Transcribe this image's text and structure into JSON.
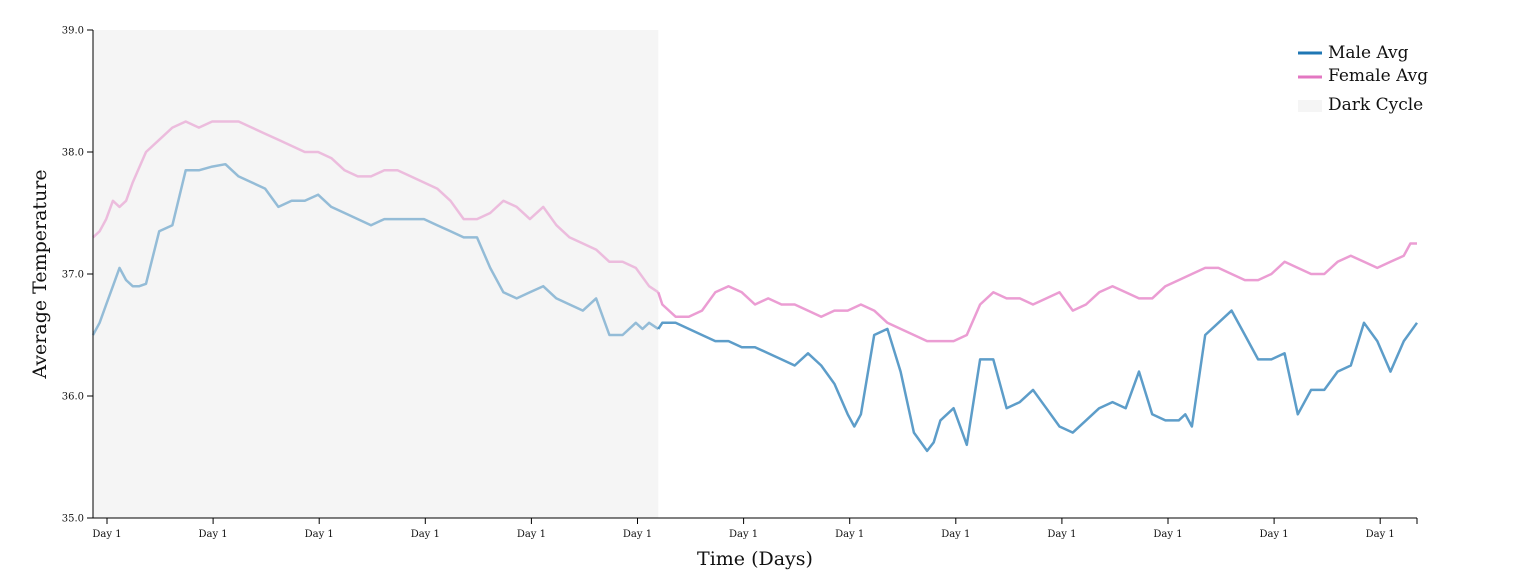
{
  "chart_data": {
    "type": "line",
    "title": "",
    "xlabel": "Time (Days)",
    "ylabel": "Average Temperature",
    "ylim": [
      35.0,
      39.0
    ],
    "y_ticks": [
      "35.0",
      "36.0",
      "37.0",
      "38.0",
      "39.0"
    ],
    "x_ticks": [
      "Day 1",
      "Day 1",
      "Day 1",
      "Day 1",
      "Day 1",
      "Day 1",
      "Day 1",
      "Day 1",
      "Day 1",
      "Day 1",
      "Day 1",
      "Day 1",
      "Day 1"
    ],
    "x_range": [
      0,
      100
    ],
    "dark_cycle": {
      "label": "Dark Cycle",
      "x_range": [
        0,
        42.7
      ],
      "color": "#f5f5f5"
    },
    "legend": {
      "position": "top-right",
      "items": [
        "Male Avg",
        "Female Avg",
        "Dark Cycle"
      ]
    },
    "series": [
      {
        "name": "Male Avg",
        "color": "#1f77b4",
        "x": [
          0,
          0.5,
          1,
          1.5,
          2,
          2.5,
          3,
          3.5,
          4,
          5,
          6,
          7,
          8,
          9,
          10,
          11,
          12,
          13,
          14,
          15,
          16,
          17,
          18,
          19,
          20,
          21,
          22,
          23,
          24,
          25,
          26,
          27,
          28,
          29,
          30,
          31,
          32,
          33,
          34,
          35,
          36,
          37,
          38,
          39,
          40,
          41,
          41.5,
          42,
          42.7,
          43,
          44,
          45,
          46,
          47,
          48,
          49,
          50,
          51,
          52,
          53,
          54,
          55,
          56,
          57,
          57.5,
          58,
          59,
          60,
          61,
          62,
          63,
          63.5,
          64,
          65,
          66,
          67,
          68,
          69,
          70,
          71,
          72,
          73,
          74,
          75,
          76,
          77,
          78,
          79,
          80,
          81,
          82,
          82.5,
          83,
          84,
          85,
          86,
          87,
          88,
          89,
          90,
          91,
          92,
          93,
          94,
          95,
          96,
          97,
          98,
          99,
          100
        ],
        "y": [
          36.5,
          36.6,
          36.75,
          36.9,
          37.05,
          36.95,
          36.9,
          36.9,
          36.92,
          37.35,
          37.4,
          37.85,
          37.85,
          37.88,
          37.9,
          37.8,
          37.75,
          37.7,
          37.55,
          37.6,
          37.6,
          37.65,
          37.55,
          37.5,
          37.45,
          37.4,
          37.45,
          37.45,
          37.45,
          37.45,
          37.4,
          37.35,
          37.3,
          37.3,
          37.05,
          36.85,
          36.8,
          36.85,
          36.9,
          36.8,
          36.75,
          36.7,
          36.8,
          36.5,
          36.5,
          36.6,
          36.55,
          36.6,
          36.55,
          36.6,
          36.6,
          36.55,
          36.5,
          36.45,
          36.45,
          36.4,
          36.4,
          36.35,
          36.3,
          36.25,
          36.35,
          36.25,
          36.1,
          35.85,
          35.75,
          35.85,
          36.5,
          36.55,
          36.2,
          35.7,
          35.55,
          35.62,
          35.8,
          35.9,
          35.6,
          36.3,
          36.3,
          35.9,
          35.95,
          36.05,
          35.9,
          35.75,
          35.7,
          35.8,
          35.9,
          35.95,
          35.9,
          36.2,
          35.85,
          35.8,
          35.8,
          35.85,
          35.75,
          36.5,
          36.6,
          36.7,
          36.5,
          36.3,
          36.3,
          36.35,
          35.85,
          36.05,
          36.05,
          36.2,
          36.25,
          36.6,
          36.45,
          36.2,
          36.45,
          36.6
        ]
      },
      {
        "name": "Female Avg",
        "color": "#e377c2",
        "x": [
          0,
          0.5,
          1,
          1.5,
          2,
          2.5,
          3,
          4,
          5,
          6,
          7,
          8,
          9,
          10,
          11,
          12,
          13,
          14,
          15,
          16,
          17,
          18,
          19,
          20,
          21,
          22,
          23,
          24,
          25,
          26,
          27,
          28,
          29,
          30,
          31,
          32,
          33,
          34,
          35,
          36,
          37,
          38,
          39,
          40,
          41,
          42,
          42.7,
          43,
          44,
          45,
          46,
          47,
          48,
          49,
          50,
          51,
          52,
          53,
          54,
          55,
          56,
          57,
          58,
          59,
          60,
          61,
          62,
          63,
          64,
          65,
          66,
          67,
          68,
          69,
          70,
          71,
          72,
          73,
          74,
          75,
          76,
          77,
          78,
          79,
          80,
          81,
          82,
          83,
          84,
          85,
          86,
          87,
          88,
          89,
          90,
          91,
          92,
          93,
          94,
          95,
          96,
          97,
          98,
          99,
          99.5,
          100
        ],
        "y": [
          37.3,
          37.35,
          37.45,
          37.6,
          37.55,
          37.6,
          37.75,
          38.0,
          38.1,
          38.2,
          38.25,
          38.2,
          38.25,
          38.25,
          38.25,
          38.2,
          38.15,
          38.1,
          38.05,
          38.0,
          38.0,
          37.95,
          37.85,
          37.8,
          37.8,
          37.85,
          37.85,
          37.8,
          37.75,
          37.7,
          37.6,
          37.45,
          37.45,
          37.5,
          37.6,
          37.55,
          37.45,
          37.55,
          37.4,
          37.3,
          37.25,
          37.2,
          37.1,
          37.1,
          37.05,
          36.9,
          36.85,
          36.75,
          36.65,
          36.65,
          36.7,
          36.85,
          36.9,
          36.85,
          36.75,
          36.8,
          36.75,
          36.75,
          36.7,
          36.65,
          36.7,
          36.7,
          36.75,
          36.7,
          36.6,
          36.55,
          36.5,
          36.45,
          36.45,
          36.45,
          36.5,
          36.75,
          36.85,
          36.8,
          36.8,
          36.75,
          36.8,
          36.85,
          36.7,
          36.75,
          36.85,
          36.9,
          36.85,
          36.8,
          36.8,
          36.9,
          36.95,
          37.0,
          37.05,
          37.05,
          37.0,
          36.95,
          36.95,
          37.0,
          37.1,
          37.05,
          37.0,
          37.0,
          37.1,
          37.15,
          37.1,
          37.05,
          37.1,
          37.15,
          37.25,
          37.25
        ]
      }
    ]
  }
}
